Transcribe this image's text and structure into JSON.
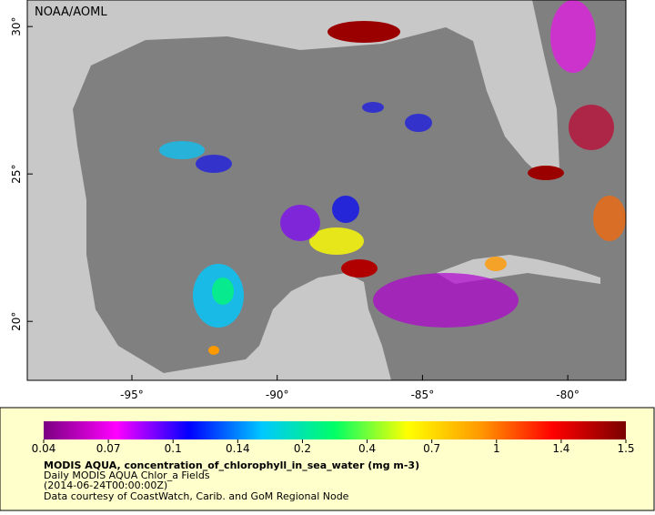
{
  "header": {
    "credit": "NOAA/AOML"
  },
  "map": {
    "lon_range": [
      -98.6,
      -78
    ],
    "lat_range": [
      18,
      30.9
    ],
    "lon_ticks": [
      {
        "value": -95,
        "label": "-95°"
      },
      {
        "value": -90,
        "label": "-90°"
      },
      {
        "value": -85,
        "label": "-85°"
      },
      {
        "value": -80,
        "label": "-80°"
      }
    ],
    "lat_ticks": [
      {
        "value": 20,
        "label": "20°"
      },
      {
        "value": 25,
        "label": "25°"
      },
      {
        "value": 30,
        "label": "30°"
      }
    ]
  },
  "colorbar": {
    "ticks": [
      0.04,
      0.07,
      0.1,
      0.14,
      0.2,
      0.4,
      0.7,
      1,
      1.4,
      1.5
    ],
    "colors": [
      "#7a0080",
      "#ff00ff",
      "#0000ff",
      "#00c8ff",
      "#00ff66",
      "#ffff00",
      "#ff9900",
      "#ff0000",
      "#7a0000"
    ]
  },
  "caption": {
    "title": "MODIS AQUA, concentration_of_chlorophyll_in_sea_water (mg m-3)",
    "line1": "Daily MODIS AQUA Chlor_a Fields",
    "line2": "(2014-06-24T00:00:00Z)",
    "line3": "Data courtesy of CoastWatch, Carib. and GoM Regional Node"
  }
}
